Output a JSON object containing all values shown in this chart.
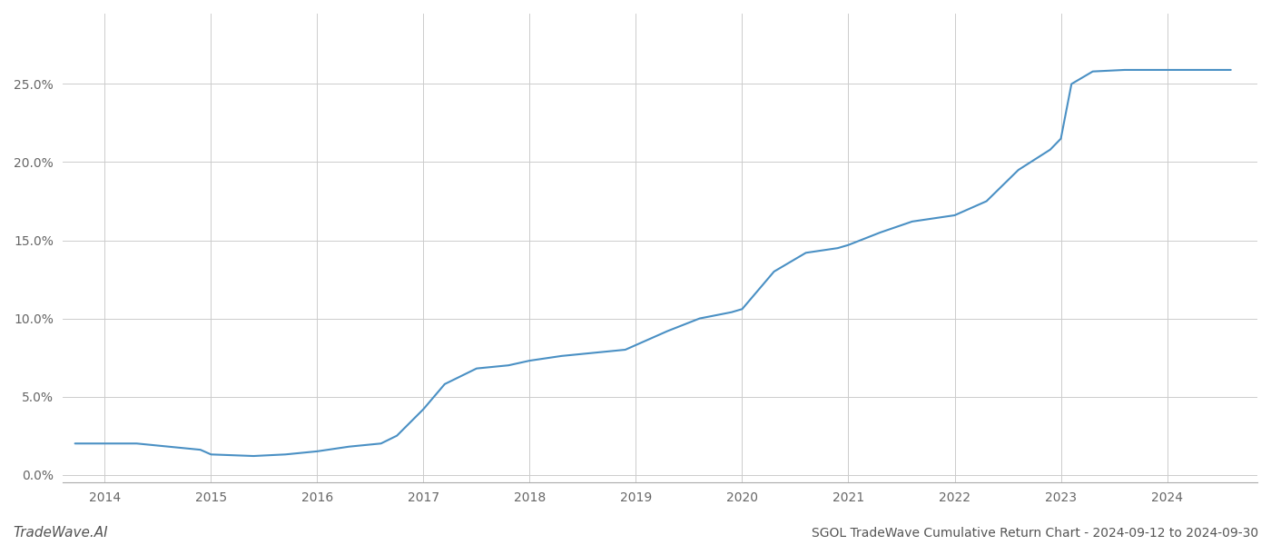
{
  "title": "SGOL TradeWave Cumulative Return Chart - 2024-09-12 to 2024-09-30",
  "watermark": "TradeWave.AI",
  "line_color": "#4a90c4",
  "line_width": 1.5,
  "background_color": "#ffffff",
  "grid_color": "#cccccc",
  "x_years": [
    2014,
    2015,
    2016,
    2017,
    2018,
    2019,
    2020,
    2021,
    2022,
    2023,
    2024
  ],
  "x_data": [
    2013.72,
    2014.0,
    2014.3,
    2014.6,
    2014.9,
    2015.0,
    2015.4,
    2015.7,
    2016.0,
    2016.3,
    2016.6,
    2016.75,
    2017.0,
    2017.2,
    2017.5,
    2017.8,
    2018.0,
    2018.3,
    2018.6,
    2018.9,
    2019.0,
    2019.3,
    2019.6,
    2019.9,
    2020.0,
    2020.3,
    2020.6,
    2020.9,
    2021.0,
    2021.3,
    2021.6,
    2021.9,
    2022.0,
    2022.3,
    2022.6,
    2022.9,
    2023.0,
    2023.1,
    2023.3,
    2023.6,
    2023.9,
    2024.0,
    2024.3,
    2024.6
  ],
  "y_data": [
    0.02,
    0.02,
    0.02,
    0.018,
    0.016,
    0.013,
    0.012,
    0.013,
    0.015,
    0.018,
    0.02,
    0.025,
    0.042,
    0.058,
    0.068,
    0.07,
    0.073,
    0.076,
    0.078,
    0.08,
    0.083,
    0.092,
    0.1,
    0.104,
    0.106,
    0.13,
    0.142,
    0.145,
    0.147,
    0.155,
    0.162,
    0.165,
    0.166,
    0.175,
    0.195,
    0.208,
    0.215,
    0.25,
    0.258,
    0.259,
    0.259,
    0.259,
    0.259,
    0.259
  ],
  "ylim": [
    -0.005,
    0.295
  ],
  "yticks": [
    0.0,
    0.05,
    0.1,
    0.15,
    0.2,
    0.25
  ],
  "xlim": [
    2013.6,
    2024.85
  ],
  "title_fontsize": 10,
  "watermark_fontsize": 11,
  "tick_fontsize": 10,
  "tick_color": "#666666",
  "spine_color": "#aaaaaa"
}
